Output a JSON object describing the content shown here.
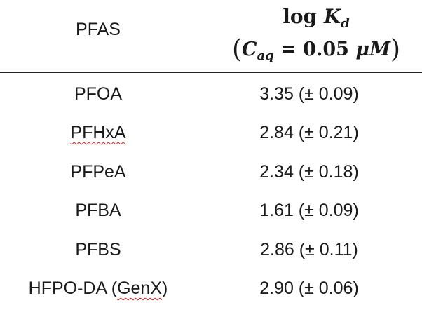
{
  "table": {
    "header": {
      "name_col": "PFAS",
      "kd_col": {
        "log": "log",
        "K": "K",
        "K_sub": "d",
        "open_paren": "(",
        "C": "C",
        "C_sub": "aq",
        "equals_value": " = 0.05 ",
        "unit": "μM",
        "close_paren": ")"
      }
    },
    "rows": [
      {
        "name": "PFOA",
        "value": "3.35 (± 0.09)"
      },
      {
        "name_spell": "PFHxA",
        "value": "2.84 (± 0.21)"
      },
      {
        "name": "PFPeA",
        "value": "2.34 (± 0.18)"
      },
      {
        "name": "PFBA",
        "value": "1.61 (± 0.09)"
      },
      {
        "name": "PFBS",
        "value": "2.86 (± 0.11)"
      },
      {
        "name_prefix": "HFPO-DA (",
        "name_spell": "GenX",
        "name_suffix": ")",
        "value": "2.90 (± 0.06)"
      }
    ]
  }
}
